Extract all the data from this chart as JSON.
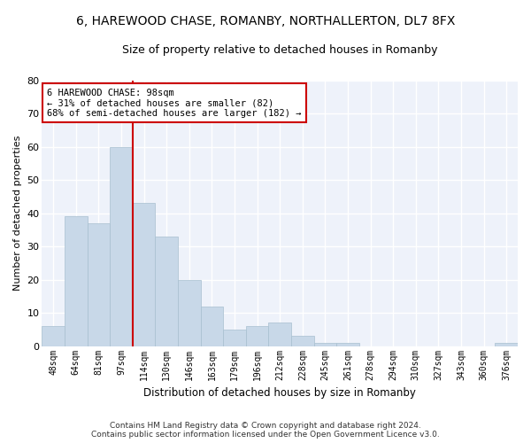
{
  "title": "6, HAREWOOD CHASE, ROMANBY, NORTHALLERTON, DL7 8FX",
  "subtitle": "Size of property relative to detached houses in Romanby",
  "xlabel": "Distribution of detached houses by size in Romanby",
  "ylabel": "Number of detached properties",
  "bar_color": "#c8d8e8",
  "bar_edge_color": "#a8bfd0",
  "background_color": "#eef2fa",
  "grid_color": "#ffffff",
  "categories": [
    "48sqm",
    "64sqm",
    "81sqm",
    "97sqm",
    "114sqm",
    "130sqm",
    "146sqm",
    "163sqm",
    "179sqm",
    "196sqm",
    "212sqm",
    "228sqm",
    "245sqm",
    "261sqm",
    "278sqm",
    "294sqm",
    "310sqm",
    "327sqm",
    "343sqm",
    "360sqm",
    "376sqm"
  ],
  "values": [
    6,
    39,
    37,
    60,
    43,
    33,
    20,
    12,
    5,
    6,
    7,
    3,
    1,
    1,
    0,
    0,
    0,
    0,
    0,
    0,
    1
  ],
  "ylim": [
    0,
    80
  ],
  "yticks": [
    0,
    10,
    20,
    30,
    40,
    50,
    60,
    70,
    80
  ],
  "property_line_index": 3,
  "property_line_color": "#cc0000",
  "annotation_text": "6 HAREWOOD CHASE: 98sqm\n← 31% of detached houses are smaller (82)\n68% of semi-detached houses are larger (182) →",
  "annotation_box_color": "#ffffff",
  "annotation_box_edge_color": "#cc0000",
  "footer_text": "Contains HM Land Registry data © Crown copyright and database right 2024.\nContains public sector information licensed under the Open Government Licence v3.0.",
  "fig_bg": "#ffffff",
  "title_fontsize": 10,
  "subtitle_fontsize": 9,
  "figsize": [
    6.0,
    5.0
  ],
  "dpi": 100
}
